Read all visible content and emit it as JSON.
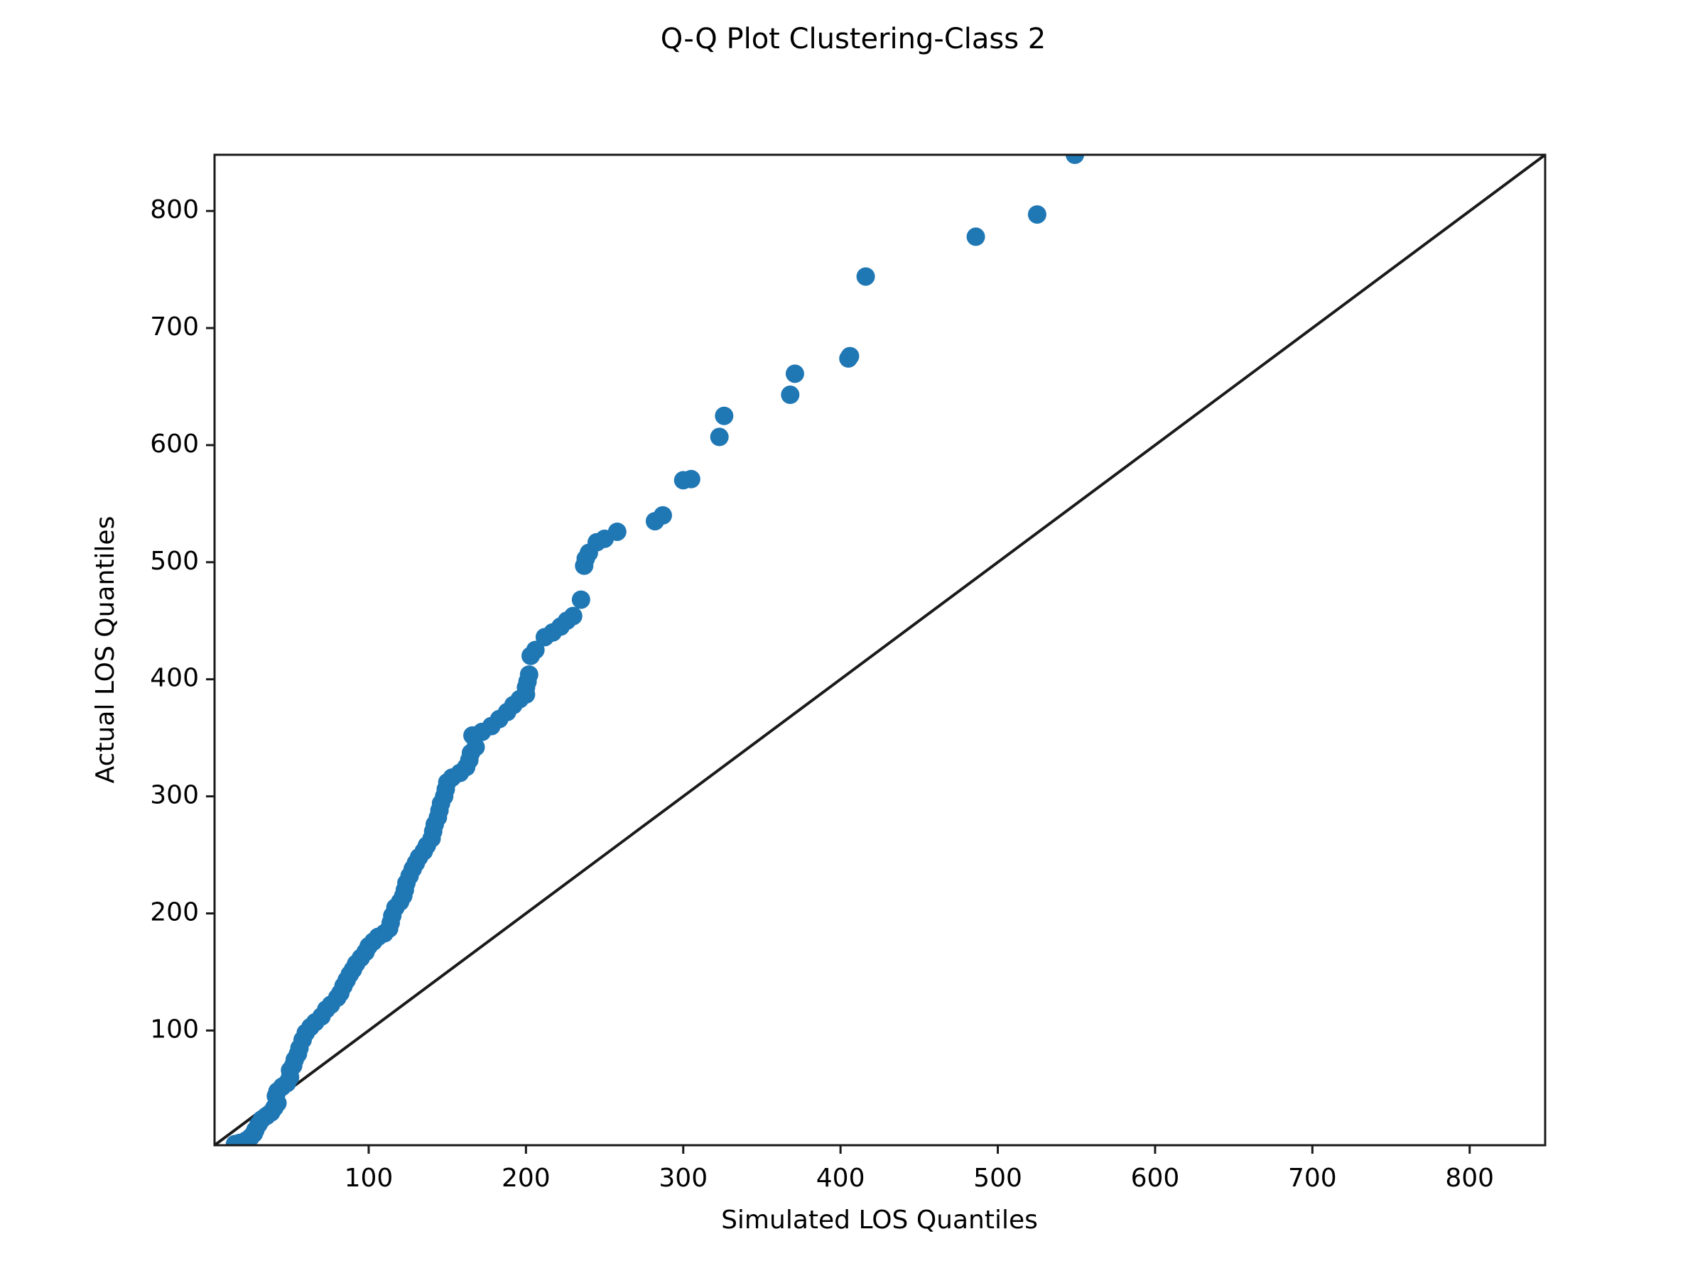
{
  "chart_data": {
    "type": "scatter",
    "title": "Q-Q Plot Clustering-Class 2",
    "xlabel": "Simulated LOS Quantiles",
    "ylabel": "Actual LOS Quantiles",
    "xlim": [
      2,
      848
    ],
    "ylim": [
      2,
      848
    ],
    "xticks": [
      100,
      200,
      300,
      400,
      500,
      600,
      700,
      800
    ],
    "yticks": [
      100,
      200,
      300,
      400,
      500,
      600,
      700,
      800
    ],
    "grid": false,
    "legend": "none",
    "point_color": "#1f77b4",
    "reference_line_color": "#1a1a1a",
    "reference_line": {
      "from": [
        2,
        2
      ],
      "to": [
        848,
        848
      ]
    },
    "points": [
      [
        15,
        3
      ],
      [
        18,
        4
      ],
      [
        22,
        6
      ],
      [
        25,
        9
      ],
      [
        27,
        12
      ],
      [
        28,
        15
      ],
      [
        30,
        20
      ],
      [
        32,
        24
      ],
      [
        35,
        27
      ],
      [
        38,
        30
      ],
      [
        40,
        34
      ],
      [
        42,
        38
      ],
      [
        41,
        44
      ],
      [
        42,
        48
      ],
      [
        45,
        52
      ],
      [
        48,
        55
      ],
      [
        50,
        60
      ],
      [
        50,
        66
      ],
      [
        52,
        70
      ],
      [
        53,
        75
      ],
      [
        55,
        80
      ],
      [
        56,
        85
      ],
      [
        58,
        92
      ],
      [
        60,
        98
      ],
      [
        63,
        103
      ],
      [
        66,
        107
      ],
      [
        70,
        112
      ],
      [
        73,
        118
      ],
      [
        76,
        122
      ],
      [
        80,
        128
      ],
      [
        82,
        132
      ],
      [
        84,
        138
      ],
      [
        86,
        143
      ],
      [
        88,
        148
      ],
      [
        90,
        152
      ],
      [
        92,
        157
      ],
      [
        95,
        162
      ],
      [
        98,
        167
      ],
      [
        100,
        172
      ],
      [
        103,
        176
      ],
      [
        106,
        180
      ],
      [
        110,
        183
      ],
      [
        113,
        187
      ],
      [
        114,
        192
      ],
      [
        115,
        198
      ],
      [
        117,
        205
      ],
      [
        120,
        210
      ],
      [
        122,
        215
      ],
      [
        123,
        220
      ],
      [
        124,
        226
      ],
      [
        126,
        232
      ],
      [
        128,
        238
      ],
      [
        130,
        243
      ],
      [
        132,
        248
      ],
      [
        135,
        253
      ],
      [
        137,
        258
      ],
      [
        140,
        264
      ],
      [
        141,
        270
      ],
      [
        142,
        276
      ],
      [
        144,
        282
      ],
      [
        145,
        288
      ],
      [
        146,
        294
      ],
      [
        148,
        300
      ],
      [
        149,
        306
      ],
      [
        150,
        312
      ],
      [
        153,
        316
      ],
      [
        158,
        320
      ],
      [
        162,
        325
      ],
      [
        164,
        331
      ],
      [
        165,
        337
      ],
      [
        168,
        342
      ],
      [
        166,
        352
      ],
      [
        172,
        355
      ],
      [
        178,
        360
      ],
      [
        183,
        366
      ],
      [
        188,
        372
      ],
      [
        192,
        378
      ],
      [
        196,
        383
      ],
      [
        200,
        387
      ],
      [
        200,
        393
      ],
      [
        201,
        398
      ],
      [
        202,
        404
      ],
      [
        203,
        420
      ],
      [
        206,
        425
      ],
      [
        212,
        436
      ],
      [
        217,
        440
      ],
      [
        222,
        445
      ],
      [
        226,
        450
      ],
      [
        230,
        454
      ],
      [
        235,
        468
      ],
      [
        237,
        497
      ],
      [
        238,
        503
      ],
      [
        240,
        508
      ],
      [
        245,
        517
      ],
      [
        250,
        520
      ],
      [
        258,
        526
      ],
      [
        282,
        535
      ],
      [
        287,
        540
      ],
      [
        300,
        570
      ],
      [
        305,
        571
      ],
      [
        323,
        607
      ],
      [
        326,
        625
      ],
      [
        368,
        643
      ],
      [
        371,
        661
      ],
      [
        405,
        674
      ],
      [
        406,
        676
      ],
      [
        416,
        744
      ],
      [
        486,
        778
      ],
      [
        525,
        797
      ],
      [
        549,
        848
      ]
    ]
  }
}
